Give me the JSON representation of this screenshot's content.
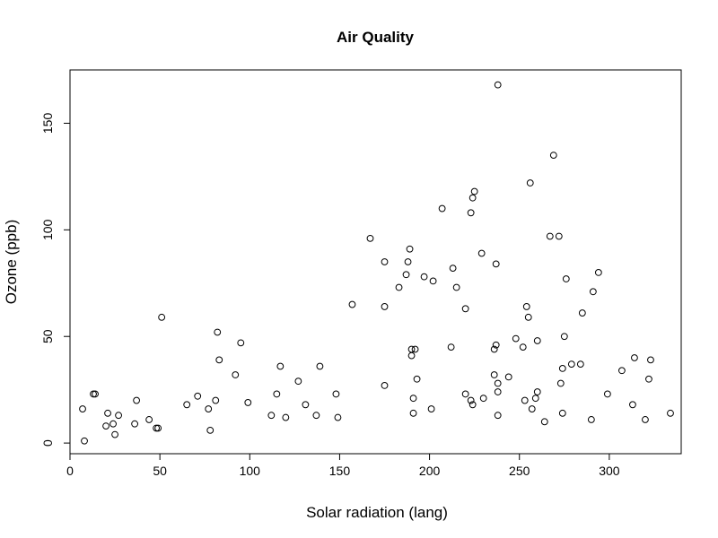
{
  "chart_data": {
    "type": "scatter",
    "title": "Air Quality",
    "xlabel": "Solar radiation (lang)",
    "ylabel": "Ozone (ppb)",
    "xlim": [
      0,
      340
    ],
    "ylim": [
      -5,
      175
    ],
    "xticks": [
      0,
      50,
      100,
      150,
      200,
      250,
      300
    ],
    "yticks": [
      0,
      50,
      100,
      150
    ],
    "grid": false,
    "legend": "none",
    "point_color": "#000000",
    "points": [
      [
        7,
        16
      ],
      [
        8,
        1
      ],
      [
        13,
        23
      ],
      [
        14,
        23
      ],
      [
        20,
        8
      ],
      [
        21,
        14
      ],
      [
        24,
        9
      ],
      [
        25,
        4
      ],
      [
        27,
        13
      ],
      [
        36,
        9
      ],
      [
        37,
        20
      ],
      [
        44,
        11
      ],
      [
        48,
        7
      ],
      [
        49,
        7
      ],
      [
        51,
        59
      ],
      [
        65,
        18
      ],
      [
        71,
        22
      ],
      [
        77,
        16
      ],
      [
        78,
        6
      ],
      [
        81,
        20
      ],
      [
        82,
        52
      ],
      [
        83,
        39
      ],
      [
        92,
        32
      ],
      [
        95,
        47
      ],
      [
        99,
        19
      ],
      [
        112,
        13
      ],
      [
        115,
        23
      ],
      [
        117,
        36
      ],
      [
        120,
        12
      ],
      [
        127,
        29
      ],
      [
        131,
        18
      ],
      [
        137,
        13
      ],
      [
        139,
        36
      ],
      [
        148,
        23
      ],
      [
        149,
        12
      ],
      [
        157,
        65
      ],
      [
        167,
        96
      ],
      [
        175,
        85
      ],
      [
        175,
        64
      ],
      [
        175,
        27
      ],
      [
        183,
        73
      ],
      [
        187,
        79
      ],
      [
        188,
        85
      ],
      [
        189,
        91
      ],
      [
        190,
        41
      ],
      [
        190,
        44
      ],
      [
        191,
        21
      ],
      [
        191,
        14
      ],
      [
        192,
        44
      ],
      [
        193,
        30
      ],
      [
        197,
        78
      ],
      [
        201,
        16
      ],
      [
        202,
        76
      ],
      [
        207,
        110
      ],
      [
        212,
        45
      ],
      [
        213,
        82
      ],
      [
        215,
        73
      ],
      [
        220,
        63
      ],
      [
        220,
        23
      ],
      [
        223,
        108
      ],
      [
        223,
        20
      ],
      [
        224,
        115
      ],
      [
        224,
        18
      ],
      [
        225,
        118
      ],
      [
        229,
        89
      ],
      [
        230,
        21
      ],
      [
        236,
        32
      ],
      [
        236,
        44
      ],
      [
        237,
        84
      ],
      [
        237,
        46
      ],
      [
        238,
        168
      ],
      [
        238,
        24
      ],
      [
        238,
        28
      ],
      [
        238,
        13
      ],
      [
        244,
        31
      ],
      [
        248,
        49
      ],
      [
        252,
        45
      ],
      [
        253,
        20
      ],
      [
        254,
        64
      ],
      [
        255,
        59
      ],
      [
        256,
        122
      ],
      [
        257,
        16
      ],
      [
        259,
        21
      ],
      [
        260,
        24
      ],
      [
        260,
        48
      ],
      [
        264,
        10
      ],
      [
        267,
        97
      ],
      [
        269,
        135
      ],
      [
        272,
        97
      ],
      [
        273,
        28
      ],
      [
        274,
        35
      ],
      [
        274,
        14
      ],
      [
        275,
        50
      ],
      [
        276,
        77
      ],
      [
        279,
        37
      ],
      [
        284,
        37
      ],
      [
        285,
        61
      ],
      [
        290,
        11
      ],
      [
        291,
        71
      ],
      [
        294,
        80
      ],
      [
        299,
        23
      ],
      [
        307,
        34
      ],
      [
        313,
        18
      ],
      [
        314,
        40
      ],
      [
        320,
        11
      ],
      [
        322,
        30
      ],
      [
        323,
        39
      ],
      [
        334,
        14
      ]
    ]
  }
}
